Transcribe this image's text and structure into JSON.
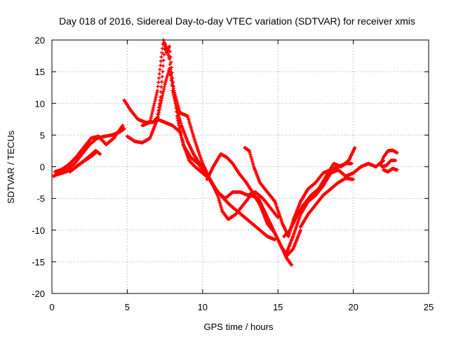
{
  "chart_data": {
    "type": "scatter",
    "title": "Day 018 of 2016, Sidereal Day-to-day VTEC variation (SDTVAR) for receiver xmis",
    "xlabel": "GPS time / hours",
    "ylabel": "SDTVAR / TECUs",
    "xlim": [
      0,
      25
    ],
    "ylim": [
      -20,
      20
    ],
    "xticks": [
      0,
      5,
      10,
      15,
      20,
      25
    ],
    "yticks": [
      -20,
      -15,
      -10,
      -5,
      0,
      5,
      10,
      15,
      20
    ],
    "grid": true,
    "marker": "plus",
    "color": "#ff0000",
    "series": [
      {
        "x": [
          0.1,
          0.5,
          1.0,
          1.5,
          2.0,
          2.5,
          3.0,
          3.5,
          4.0,
          4.5,
          4.8
        ],
        "y": [
          -1.5,
          -1.0,
          -0.5,
          0.5,
          2.0,
          3.5,
          4.5,
          4.8,
          5.0,
          5.5,
          6.0
        ]
      },
      {
        "x": [
          0.2,
          0.6,
          1.1,
          1.6,
          2.1,
          2.6,
          3.1,
          3.6,
          4.1,
          4.7
        ],
        "y": [
          -0.8,
          -0.5,
          0.3,
          1.5,
          3.0,
          4.5,
          4.8,
          3.5,
          4.5,
          6.5
        ]
      },
      {
        "x": [
          0.4,
          0.9,
          1.4,
          1.9,
          2.4,
          2.9,
          3.2
        ],
        "y": [
          -1.2,
          -0.8,
          -0.4,
          0.5,
          1.5,
          2.5,
          2.0
        ]
      },
      {
        "x": [
          1.2,
          1.7,
          2.2,
          2.7,
          3.0
        ],
        "y": [
          -0.8,
          0.2,
          1.0,
          1.8,
          2.4
        ]
      },
      {
        "x": [
          4.8,
          5.2,
          5.7,
          6.2,
          6.7,
          7.0,
          7.2,
          7.35,
          7.5,
          7.8,
          8.0,
          8.3,
          8.6,
          9.0,
          9.4,
          9.8,
          10.2,
          10.6,
          11.0
        ],
        "y": [
          10.5,
          9.0,
          7.5,
          7.0,
          7.0,
          7.8,
          11.0,
          15.0,
          19.5,
          17.0,
          12.0,
          9.0,
          6.5,
          4.0,
          2.0,
          0.5,
          -1.0,
          -2.5,
          -4.0
        ]
      },
      {
        "x": [
          5.0,
          5.5,
          6.0,
          6.5,
          7.0,
          7.5,
          7.8,
          8.1,
          8.5,
          9.0,
          9.5,
          10.0,
          10.5,
          11.0,
          11.3,
          11.7,
          12.2,
          12.7,
          13.2,
          13.7,
          14.2,
          14.7,
          15.2,
          15.6,
          15.9
        ],
        "y": [
          4.8,
          4.0,
          3.8,
          4.5,
          7.5,
          13.0,
          15.5,
          12.0,
          8.5,
          8.0,
          4.0,
          0.5,
          -2.0,
          -4.5,
          -7.0,
          -8.3,
          -7.5,
          -6.0,
          -4.5,
          -5.0,
          -7.5,
          -10.0,
          -12.5,
          -14.5,
          -15.5
        ]
      },
      {
        "x": [
          6.0,
          6.5,
          7.0,
          7.2,
          7.4,
          7.6,
          7.8,
          8.0,
          8.3,
          8.7,
          9.2,
          9.7,
          10.2,
          10.7,
          11.2,
          11.8,
          12.3,
          12.8,
          13.3,
          13.8,
          14.3,
          14.8
        ],
        "y": [
          6.5,
          7.0,
          12.0,
          16.0,
          20.0,
          18.0,
          19.0,
          14.0,
          8.0,
          3.5,
          1.5,
          0.5,
          -1.0,
          -3.0,
          -4.5,
          -6.0,
          -7.0,
          -8.0,
          -9.0,
          -10.0,
          -11.0,
          -11.5
        ]
      },
      {
        "x": [
          7.0,
          7.5,
          8.0,
          8.5,
          8.8,
          9.1,
          9.5,
          10.0,
          10.5,
          11.0,
          11.5,
          12.0,
          12.5,
          13.0,
          13.5,
          14.0,
          14.5,
          15.0
        ],
        "y": [
          7.5,
          7.0,
          6.5,
          5.5,
          3.0,
          1.0,
          0.0,
          -1.0,
          -2.0,
          -4.0,
          -5.0,
          -4.0,
          -4.0,
          -4.5,
          -4.0,
          -5.0,
          -6.5,
          -8.0
        ]
      },
      {
        "x": [
          10.3,
          10.7,
          11.2,
          11.6,
          12.0,
          12.4,
          12.9,
          13.3,
          13.8,
          14.3,
          14.8,
          15.2,
          15.6,
          16.0,
          16.5
        ],
        "y": [
          -2.0,
          0.0,
          2.0,
          1.5,
          0.5,
          -1.0,
          -2.5,
          -4.0,
          -6.0,
          -9.0,
          -10.5,
          -12.5,
          -14.0,
          -13.0,
          -10.0
        ]
      },
      {
        "x": [
          12.8,
          13.1,
          13.4,
          13.8,
          14.3,
          14.8,
          15.3,
          15.7,
          16.0,
          16.5,
          17.0,
          17.5,
          18.0,
          18.5,
          19.0,
          19.5,
          19.9
        ],
        "y": [
          3.0,
          2.5,
          0.0,
          -2.5,
          -4.0,
          -5.5,
          -9.0,
          -11.0,
          -8.5,
          -5.5,
          -3.5,
          -2.5,
          -1.0,
          -0.5,
          0.0,
          0.5,
          0.5
        ]
      },
      {
        "x": [
          15.4,
          15.8,
          16.2,
          16.7,
          17.2,
          17.7,
          18.2,
          18.7,
          19.2,
          19.7,
          20.1
        ],
        "y": [
          -11.0,
          -10.0,
          -8.0,
          -6.0,
          -4.5,
          -3.5,
          -1.5,
          0.5,
          0.0,
          1.0,
          3.0
        ]
      },
      {
        "x": [
          15.5,
          16.0,
          16.5,
          17.0,
          17.5,
          18.0,
          18.5,
          19.0,
          19.5,
          20.0,
          20.5,
          21.0,
          21.5,
          22.0
        ],
        "y": [
          -14.0,
          -11.0,
          -7.5,
          -5.5,
          -4.5,
          -3.0,
          -1.0,
          -0.5,
          -1.5,
          -1.0,
          0.0,
          0.5,
          0.0,
          1.0
        ]
      },
      {
        "x": [
          16.5,
          17.0,
          17.5,
          18.0,
          18.5,
          19.0,
          19.5,
          20.0
        ],
        "y": [
          -9.5,
          -7.5,
          -6.0,
          -4.5,
          -3.5,
          -2.5,
          -1.8,
          -2.0
        ]
      },
      {
        "x": [
          21.8,
          22.0,
          22.3,
          22.6,
          22.9
        ],
        "y": [
          0.2,
          1.5,
          2.5,
          2.6,
          2.2
        ]
      },
      {
        "x": [
          21.9,
          22.2,
          22.5,
          22.8
        ],
        "y": [
          0.0,
          0.2,
          1.0,
          1.0
        ]
      },
      {
        "x": [
          22.0,
          22.3,
          22.6,
          22.9
        ],
        "y": [
          -0.5,
          -0.8,
          -0.3,
          -0.5
        ]
      }
    ]
  }
}
